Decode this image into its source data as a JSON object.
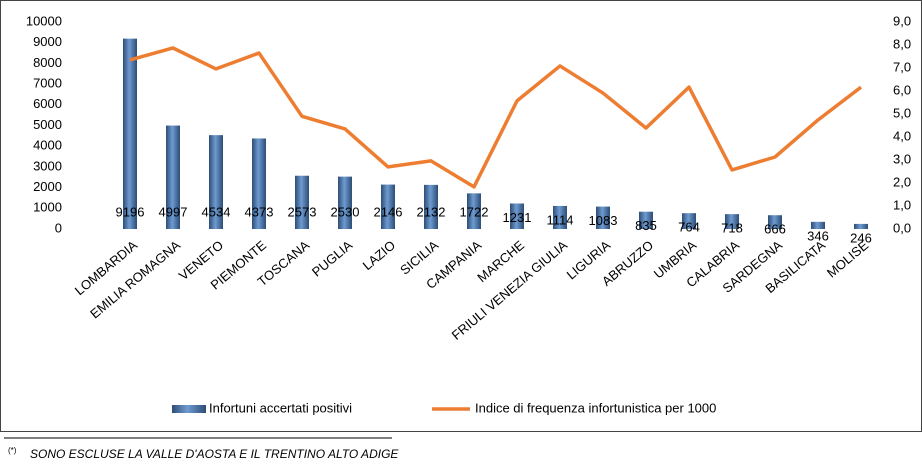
{
  "chart_data": {
    "type": "bar-line",
    "categories": [
      "LOMBARDIA",
      "EMILIA ROMAGNA",
      "VENETO",
      "PIEMONTE",
      "TOSCANA",
      "PUGLIA",
      "LAZIO",
      "SICILIA",
      "CAMPANIA",
      "MARCHE",
      "FRIULI VENEZIA GIULIA",
      "LIGURIA",
      "ABRUZZO",
      "UMBRIA",
      "CALABRIA",
      "SARDEGNA",
      "BASILICATA",
      "MOLISE"
    ],
    "series": [
      {
        "name": "Infortuni accertati positivi",
        "type": "bar",
        "color": "#4f81bd",
        "values": [
          9196,
          4997,
          4534,
          4373,
          2573,
          2530,
          2146,
          2132,
          1722,
          1231,
          1114,
          1083,
          835,
          764,
          718,
          666,
          346,
          246
        ]
      },
      {
        "name": "Indice di frequenza infortunistica per 1000",
        "type": "line",
        "axis": "y2",
        "color": "#ed7d31",
        "values": [
          7.35,
          7.87,
          6.96,
          7.65,
          4.9,
          4.35,
          2.7,
          2.96,
          1.83,
          5.57,
          7.09,
          5.91,
          4.39,
          6.17,
          2.57,
          3.13,
          4.74,
          6.17
        ]
      }
    ],
    "ylim": [
      0,
      10000
    ],
    "yticks": [
      0,
      1000,
      2000,
      3000,
      4000,
      5000,
      6000,
      7000,
      8000,
      9000,
      10000
    ],
    "y2lim": [
      0,
      9
    ],
    "y2ticks": [
      {
        "value": 0,
        "label": "0,0"
      },
      {
        "value": 1,
        "label": "1,0"
      },
      {
        "value": 2,
        "label": "2,0"
      },
      {
        "value": 3,
        "label": "3,0"
      },
      {
        "value": 4,
        "label": "4,0"
      },
      {
        "value": 5,
        "label": "5,0"
      },
      {
        "value": 6,
        "label": "6,0"
      },
      {
        "value": 7,
        "label": "7,0"
      },
      {
        "value": 8,
        "label": "8,0"
      },
      {
        "value": 9,
        "label": "9,0"
      }
    ],
    "grid": false,
    "legend": "bottom",
    "footnote_marker": "(*)",
    "footnote": "SONO ESCLUSE LA VALLE D'AOSTA E IL TRENTINO ALTO ADIGE"
  }
}
